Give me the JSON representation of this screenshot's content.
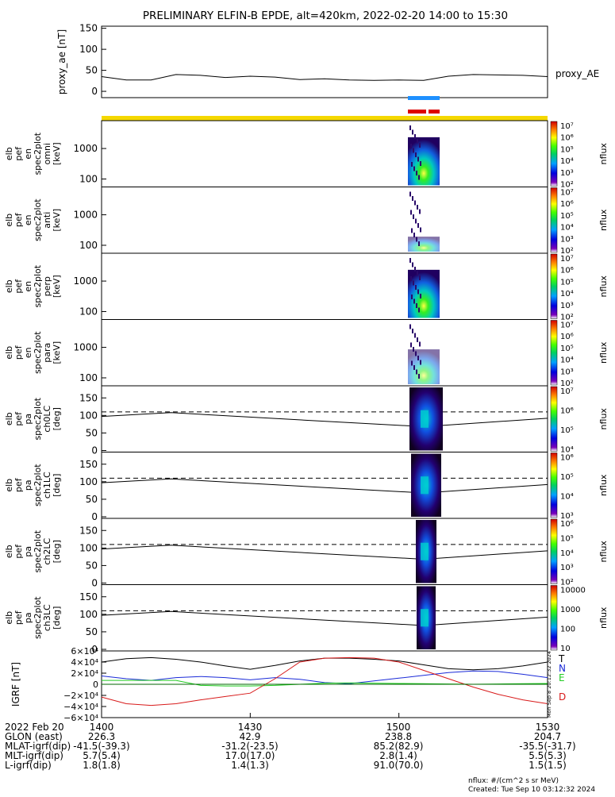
{
  "title": "PRELIMINARY ELFIN-B EPDE, alt=420km, 2022-02-20 14:00 to 15:30",
  "ae_panel": {
    "ylabel": "proxy_ae [nT]",
    "series_label": "proxy_AE",
    "yticks": [
      "150",
      "100",
      "50",
      "0"
    ],
    "ylim": [
      -15,
      155
    ]
  },
  "spectra_panels": [
    {
      "label_lines": [
        "elb",
        "pef",
        "en",
        "spec2plot",
        "omni",
        "[keV]"
      ],
      "yticks": [
        "1000",
        "100"
      ]
    },
    {
      "label_lines": [
        "elb",
        "pef",
        "en",
        "spec2plot",
        "anti",
        "[keV]"
      ],
      "yticks": [
        "1000",
        "100"
      ]
    },
    {
      "label_lines": [
        "elb",
        "pef",
        "en",
        "spec2plot",
        "perp",
        "[keV]"
      ],
      "yticks": [
        "1000",
        "100"
      ]
    },
    {
      "label_lines": [
        "elb",
        "pef",
        "en",
        "spec2plot",
        "para",
        "[keV]"
      ],
      "yticks": [
        "1000",
        "100"
      ]
    }
  ],
  "pa_panels": [
    {
      "label_lines": [
        "elb",
        "pef",
        "pa",
        "spec2plot",
        "ch0LC",
        "[deg]"
      ],
      "yticks": [
        "150",
        "100",
        "50",
        "0"
      ]
    },
    {
      "label_lines": [
        "elb",
        "pef",
        "pa",
        "spec2plot",
        "ch1LC",
        "[deg]"
      ],
      "yticks": [
        "150",
        "100",
        "50",
        "0"
      ]
    },
    {
      "label_lines": [
        "elb",
        "pef",
        "pa",
        "spec2plot",
        "ch2LC",
        "[deg]"
      ],
      "yticks": [
        "150",
        "100",
        "50",
        "0"
      ]
    },
    {
      "label_lines": [
        "elb",
        "pef",
        "pa",
        "spec2plot",
        "ch3LC",
        "[deg]"
      ],
      "yticks": [
        "150",
        "100",
        "50",
        "0"
      ]
    }
  ],
  "colorbars": [
    {
      "ticks": [
        "10⁷",
        "10⁶",
        "10⁵",
        "10⁴",
        "10³",
        "10²"
      ],
      "label": "nflux"
    },
    {
      "ticks": [
        "10⁷",
        "10⁶",
        "10⁵",
        "10⁴",
        "10³",
        "10²"
      ],
      "label": "nflux"
    },
    {
      "ticks": [
        "10⁷",
        "10⁶",
        "10⁵",
        "10⁴",
        "10³",
        "10²"
      ],
      "label": "nflux"
    },
    {
      "ticks": [
        "10⁷",
        "10⁶",
        "10⁵",
        "10⁴",
        "10³",
        "10²"
      ],
      "label": "nflux"
    },
    {
      "ticks": [
        "10⁷",
        "10⁶",
        "10⁵",
        "10⁴"
      ],
      "label": "nflux"
    },
    {
      "ticks": [
        "10⁶",
        "10⁵",
        "10⁴",
        "10³"
      ],
      "label": "nflux"
    },
    {
      "ticks": [
        "10⁶",
        "10⁵",
        "10⁴",
        "10³",
        "10²"
      ],
      "label": "nflux"
    },
    {
      "ticks": [
        "10000",
        "1000",
        "100",
        "10"
      ],
      "label": "nflux"
    }
  ],
  "igrf_panel": {
    "ylabel": "IGRF [nT]",
    "yticks": [
      "6×10⁴",
      "4×10⁴",
      "2×10⁴",
      "0",
      "−2×10⁴",
      "−4×10⁴",
      "−6×10⁴"
    ],
    "legend": [
      {
        "label": "T",
        "color": "#000000"
      },
      {
        "label": "N",
        "color": "#1a2ad8"
      },
      {
        "label": "E",
        "color": "#22cc22"
      },
      {
        "label": "D",
        "color": "#d81a1a"
      }
    ],
    "side_stamp": "Mon Sep 8 20:12:32 2024"
  },
  "colors": {
    "yellow_bar": "#f5d800",
    "blue_bar": "#1e90ff",
    "red_bar": "#dd0000",
    "ae_line": "#000000"
  },
  "chart_data": [
    {
      "type": "line",
      "title": "proxy_AE",
      "x_minutes_after_1400": [
        0,
        5,
        10,
        15,
        20,
        25,
        30,
        35,
        40,
        45,
        50,
        55,
        60,
        65,
        70,
        75,
        80,
        85,
        90
      ],
      "values": [
        35,
        27,
        27,
        40,
        38,
        33,
        36,
        34,
        28,
        30,
        27,
        26,
        27,
        26,
        36,
        40,
        39,
        38,
        35
      ],
      "ylim": [
        -15,
        155
      ]
    },
    {
      "type": "line",
      "title": "IGRF",
      "series": [
        {
          "name": "T",
          "values": [
            40000,
            46000,
            48000,
            45000,
            40000,
            33000,
            27000,
            34000,
            42000,
            47000,
            47000,
            45000,
            42000,
            35000,
            28000,
            26000,
            28000,
            33000,
            40000
          ]
        },
        {
          "name": "N",
          "values": [
            15000,
            10000,
            7000,
            12000,
            14000,
            12000,
            8000,
            12000,
            9000,
            3000,
            1000,
            6000,
            11000,
            16000,
            21000,
            24000,
            23000,
            18000,
            12000
          ]
        },
        {
          "name": "E",
          "values": [
            7000,
            7000,
            7000,
            7000,
            -2000,
            -3000,
            -3000,
            -2000,
            0,
            2000,
            2500,
            2000,
            1500,
            1000,
            500,
            0,
            500,
            1000,
            1500
          ]
        },
        {
          "name": "D",
          "values": [
            -23000,
            -35000,
            -38000,
            -35000,
            -28000,
            -22000,
            -16000,
            10000,
            40000,
            47000,
            48000,
            47000,
            40000,
            25000,
            10000,
            -5000,
            -18000,
            -28000,
            -35000
          ]
        }
      ],
      "ylim": [
        -60000,
        60000
      ]
    }
  ],
  "footer": {
    "rows": [
      {
        "label": "2022 Feb 20",
        "cols": [
          "1400",
          "1430",
          "1500",
          "1530"
        ]
      },
      {
        "label": "GLON (east)",
        "cols": [
          "226.3",
          "42.9",
          "238.8",
          "204.7"
        ]
      },
      {
        "label": "MLAT-igrf(dip)",
        "cols": [
          "-41.5(-39.3)",
          "-31.2(-23.5)",
          "85.2(82.9)",
          "-35.5(-31.7)"
        ]
      },
      {
        "label": "MLT-igrf(dip)",
        "cols": [
          "5.7(5.4)",
          "17.0(17.0)",
          "2.8(1.4)",
          "5.5(5.3)"
        ]
      },
      {
        "label": "L-igrf(dip)",
        "cols": [
          "1.8(1.8)",
          "1.4(1.3)",
          "91.0(70.0)",
          "1.5(1.5)"
        ]
      }
    ],
    "units_note": "nflux: #/(cm^2 s sr MeV)",
    "created": "Created: Tue Sep 10 03:12:32 2024"
  }
}
